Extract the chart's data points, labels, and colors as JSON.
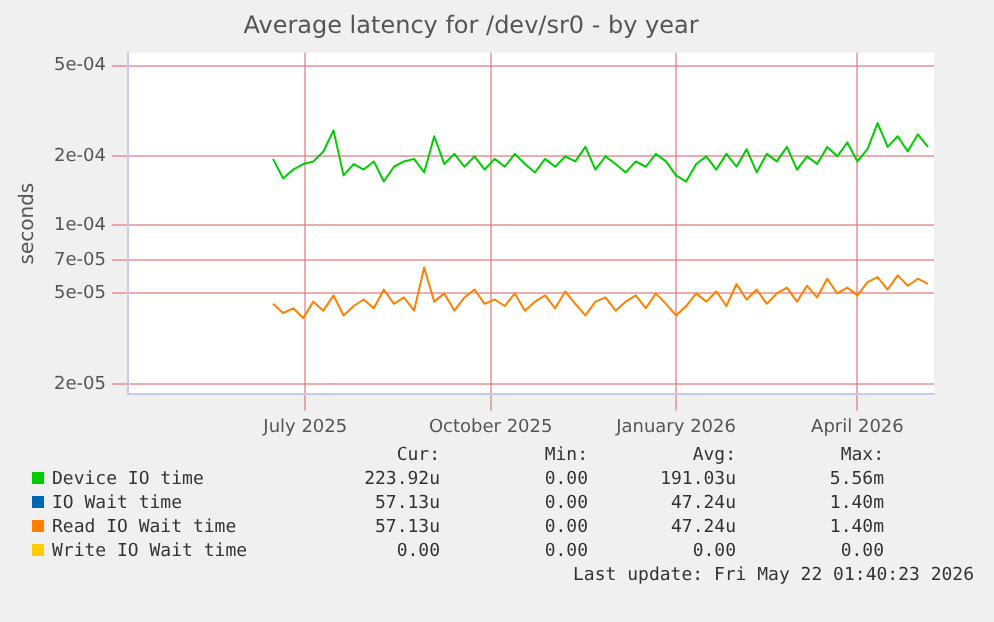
{
  "chart_data": {
    "type": "line",
    "title": "Average latency for /dev/sr0 - by year",
    "ylabel": "seconds",
    "log": "y",
    "grid": true,
    "legend": "bottom",
    "marker": "none",
    "line_style": "solid",
    "xlim": [
      "2025-04-19",
      "2026-05-24"
    ],
    "xticks": [
      {
        "value": "2025-07-16",
        "label": "July 2025"
      },
      {
        "value": "2025-10-16",
        "label": "October 2025"
      },
      {
        "value": "2026-01-16",
        "label": "January 2026"
      },
      {
        "value": "2026-04-16",
        "label": "April 2026"
      }
    ],
    "ylim": [
      1.8e-05,
      0.00057
    ],
    "yticks": [
      {
        "value": 2e-05,
        "label": "2e-05"
      },
      {
        "value": 5e-05,
        "label": "5e-05"
      },
      {
        "value": 7e-05,
        "label": "7e-05"
      },
      {
        "value": 0.0001,
        "label": "1e-04"
      },
      {
        "value": 0.0002,
        "label": "2e-04"
      },
      {
        "value": 0.0005,
        "label": "5e-04"
      }
    ],
    "x": [
      "2025-06-30",
      "2025-07-05",
      "2025-07-10",
      "2025-07-15",
      "2025-07-20",
      "2025-07-25",
      "2025-07-30",
      "2025-08-04",
      "2025-08-09",
      "2025-08-14",
      "2025-08-19",
      "2025-08-24",
      "2025-08-29",
      "2025-09-03",
      "2025-09-08",
      "2025-09-13",
      "2025-09-18",
      "2025-09-23",
      "2025-09-28",
      "2025-10-03",
      "2025-10-08",
      "2025-10-13",
      "2025-10-18",
      "2025-10-23",
      "2025-10-28",
      "2025-11-02",
      "2025-11-07",
      "2025-11-12",
      "2025-11-17",
      "2025-11-22",
      "2025-11-27",
      "2025-12-02",
      "2025-12-07",
      "2025-12-12",
      "2025-12-17",
      "2025-12-22",
      "2025-12-27",
      "2026-01-01",
      "2026-01-06",
      "2026-01-11",
      "2026-01-16",
      "2026-01-21",
      "2026-01-26",
      "2026-01-31",
      "2026-02-05",
      "2026-02-10",
      "2026-02-15",
      "2026-02-20",
      "2026-02-25",
      "2026-03-02",
      "2026-03-07",
      "2026-03-12",
      "2026-03-17",
      "2026-03-22",
      "2026-03-27",
      "2026-04-01",
      "2026-04-06",
      "2026-04-11",
      "2026-04-16",
      "2026-04-21",
      "2026-04-26",
      "2026-05-01",
      "2026-05-06",
      "2026-05-11",
      "2026-05-16",
      "2026-05-21"
    ],
    "series": [
      {
        "name": "Device IO time",
        "color": "#00cc00",
        "values": [
          0.000195,
          0.00016,
          0.000175,
          0.000185,
          0.00019,
          0.00021,
          0.00026,
          0.000165,
          0.000185,
          0.000175,
          0.00019,
          0.000155,
          0.00018,
          0.00019,
          0.000195,
          0.00017,
          0.000245,
          0.000185,
          0.000205,
          0.00018,
          0.0002,
          0.000175,
          0.000195,
          0.00018,
          0.000205,
          0.000185,
          0.00017,
          0.000195,
          0.00018,
          0.0002,
          0.00019,
          0.00022,
          0.000175,
          0.0002,
          0.000185,
          0.00017,
          0.00019,
          0.00018,
          0.000205,
          0.00019,
          0.000165,
          0.000155,
          0.000185,
          0.0002,
          0.000175,
          0.000205,
          0.00018,
          0.000215,
          0.00017,
          0.000205,
          0.00019,
          0.00022,
          0.000175,
          0.0002,
          0.000185,
          0.00022,
          0.0002,
          0.00023,
          0.00019,
          0.000215,
          0.00028,
          0.00022,
          0.000245,
          0.00021,
          0.00025,
          0.00022
        ]
      },
      {
        "name": "IO Wait time",
        "color": "#0066b3",
        "values": [
          null,
          null,
          null,
          null,
          null,
          null,
          null,
          null,
          null,
          null,
          null,
          null,
          null,
          null,
          null,
          null,
          null,
          null,
          null,
          null,
          null,
          null,
          null,
          null,
          null,
          null,
          null,
          null,
          null,
          null,
          null,
          null,
          null,
          null,
          null,
          null,
          null,
          null,
          null,
          null,
          null,
          null,
          null,
          null,
          null,
          null,
          null,
          null,
          null,
          null,
          null,
          null,
          null,
          null,
          null,
          null,
          null,
          null,
          null,
          null,
          null,
          null,
          null,
          null,
          null,
          null
        ]
      },
      {
        "name": "Read IO Wait time",
        "color": "#ff8000",
        "values": [
          4.5e-05,
          4.1e-05,
          4.3e-05,
          3.9e-05,
          4.6e-05,
          4.2e-05,
          4.9e-05,
          4e-05,
          4.4e-05,
          4.7e-05,
          4.3e-05,
          5.2e-05,
          4.5e-05,
          4.8e-05,
          4.2e-05,
          6.5e-05,
          4.6e-05,
          5e-05,
          4.2e-05,
          4.8e-05,
          5.2e-05,
          4.5e-05,
          4.7e-05,
          4.4e-05,
          5e-05,
          4.2e-05,
          4.6e-05,
          4.9e-05,
          4.3e-05,
          5.1e-05,
          4.5e-05,
          4e-05,
          4.6e-05,
          4.8e-05,
          4.2e-05,
          4.6e-05,
          4.9e-05,
          4.3e-05,
          5e-05,
          4.5e-05,
          4e-05,
          4.4e-05,
          5e-05,
          4.6e-05,
          5.1e-05,
          4.4e-05,
          5.5e-05,
          4.7e-05,
          5.2e-05,
          4.5e-05,
          5e-05,
          5.3e-05,
          4.6e-05,
          5.4e-05,
          4.8e-05,
          5.8e-05,
          5e-05,
          5.3e-05,
          4.9e-05,
          5.6e-05,
          5.9e-05,
          5.2e-05,
          6e-05,
          5.4e-05,
          5.8e-05,
          5.5e-05
        ]
      },
      {
        "name": "Write IO Wait time",
        "color": "#ffcc00",
        "values": [
          null,
          null,
          null,
          null,
          null,
          null,
          null,
          null,
          null,
          null,
          null,
          null,
          null,
          null,
          null,
          null,
          null,
          null,
          null,
          null,
          null,
          null,
          null,
          null,
          null,
          null,
          null,
          null,
          null,
          null,
          null,
          null,
          null,
          null,
          null,
          null,
          null,
          null,
          null,
          null,
          null,
          null,
          null,
          null,
          null,
          null,
          null,
          null,
          null,
          null,
          null,
          null,
          null,
          null,
          null,
          null,
          null,
          null,
          null,
          null,
          null,
          null,
          null,
          null,
          null,
          null
        ]
      }
    ],
    "annotations": [
      "Cur:",
      "Min:",
      "Avg:",
      "Max:",
      "223.92u",
      "0.00",
      "191.03u",
      "5.56m",
      "57.13u",
      "0.00",
      "47.24u",
      "1.40m",
      "57.13u",
      "0.00",
      "47.24u",
      "1.40m",
      "0.00",
      "0.00",
      "0.00",
      "0.00",
      "Last update: Fri May 22 01:40:23 2026"
    ]
  }
}
